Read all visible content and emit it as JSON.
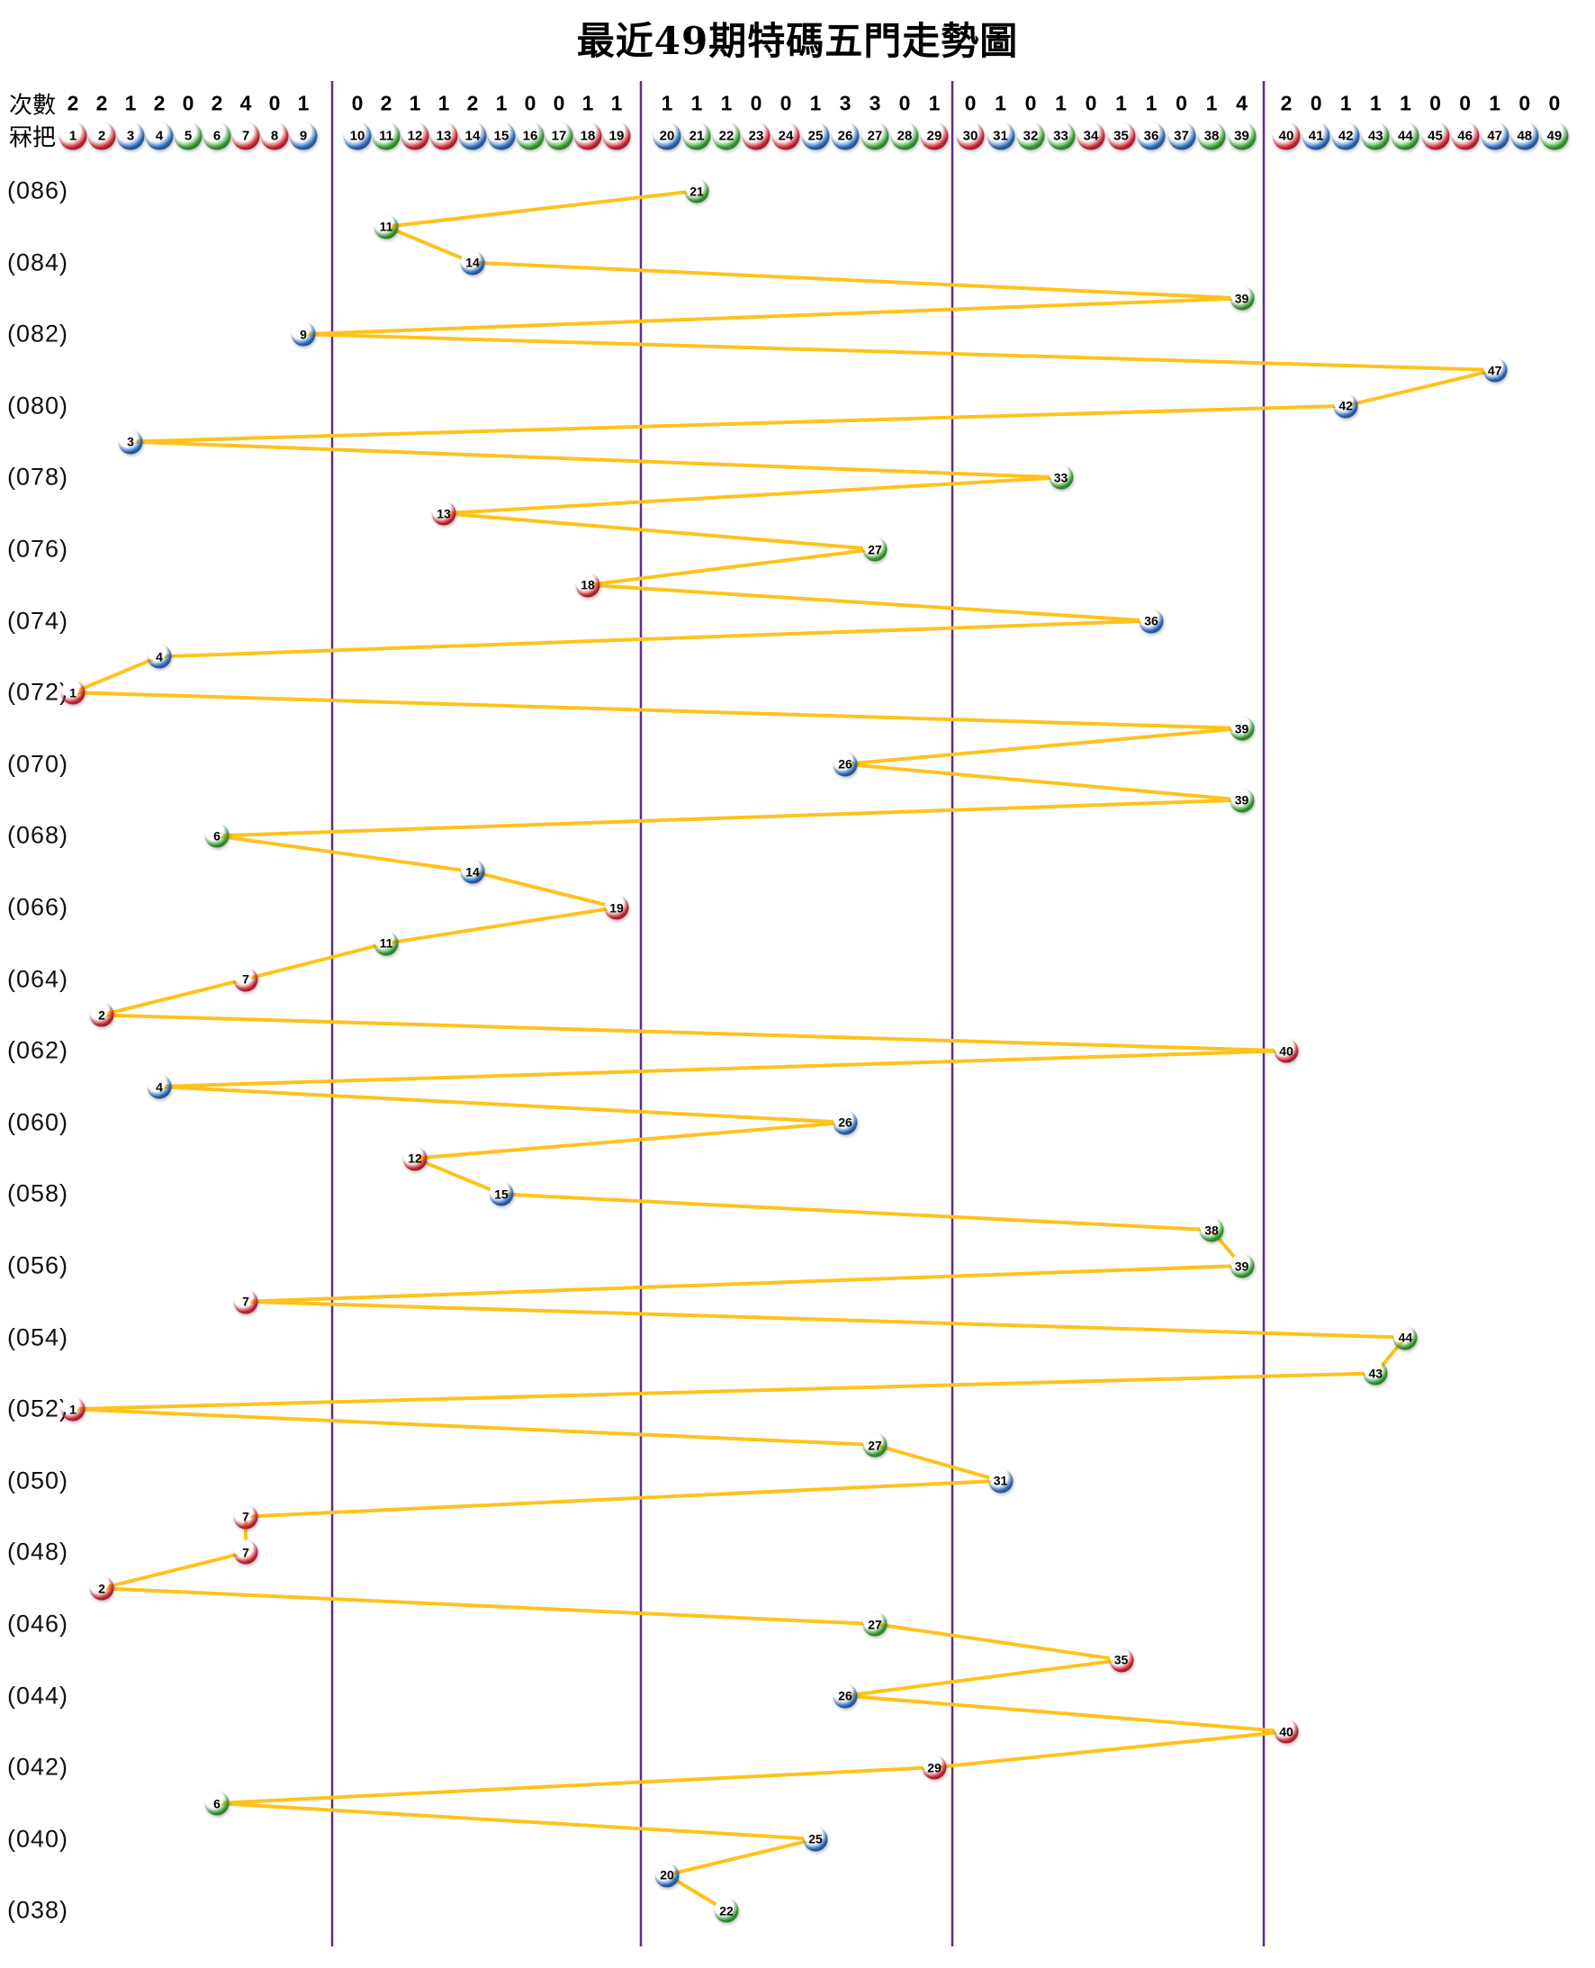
{
  "title": "最近49期特碼五門走勢圖",
  "header": {
    "counts_label": "次數",
    "balls_label": "冧把"
  },
  "colors": {
    "red": "#d5293a",
    "blue": "#2e6fc4",
    "green": "#3aa637",
    "trend_line": "#ffc21c",
    "group_divider": "#5b2c8e",
    "text": "#000000"
  },
  "chart_data": {
    "type": "line",
    "title": "最近49期特碼五門走勢圖",
    "x_axis": "冧把 1-49 (five groups split after 9, 19, 29, 39)",
    "y_axis": "期數 086 (top) → 038 (bottom), one draw per row",
    "x_range": [
      1,
      49
    ],
    "grid": "off",
    "legend": "none",
    "group_dividers_after": [
      9,
      19,
      29,
      39
    ],
    "frequency_counts": [
      2,
      2,
      1,
      2,
      0,
      2,
      4,
      0,
      1,
      0,
      2,
      1,
      1,
      2,
      1,
      0,
      0,
      1,
      1,
      1,
      1,
      1,
      0,
      0,
      1,
      3,
      3,
      0,
      1,
      0,
      1,
      0,
      1,
      0,
      1,
      1,
      0,
      1,
      4,
      2,
      0,
      1,
      1,
      1,
      0,
      0,
      1,
      0,
      0
    ],
    "ball_color_groups": {
      "red": [
        1,
        2,
        7,
        8,
        12,
        13,
        18,
        19,
        23,
        24,
        29,
        30,
        34,
        35,
        40,
        45,
        46
      ],
      "blue": [
        3,
        4,
        9,
        10,
        14,
        15,
        20,
        25,
        26,
        31,
        36,
        37,
        41,
        42,
        47,
        48
      ],
      "green": [
        5,
        6,
        11,
        16,
        17,
        21,
        22,
        27,
        28,
        32,
        33,
        38,
        39,
        43,
        44,
        49
      ]
    },
    "visible_period_labels": [
      "(086)",
      "(084)",
      "(082)",
      "(080)",
      "(078)",
      "(076)",
      "(074)",
      "(072)",
      "(070)",
      "(068)",
      "(066)",
      "(064)",
      "(062)",
      "(060)",
      "(058)",
      "(056)",
      "(054)",
      "(052)",
      "(050)",
      "(048)",
      "(046)",
      "(044)",
      "(042)",
      "(040)",
      "(038)"
    ],
    "series": [
      {
        "name": "特碼",
        "points": [
          {
            "period": "086",
            "ball": 21
          },
          {
            "period": "085",
            "ball": 11
          },
          {
            "period": "084",
            "ball": 14
          },
          {
            "period": "083",
            "ball": 39
          },
          {
            "period": "082",
            "ball": 9
          },
          {
            "period": "081",
            "ball": 47
          },
          {
            "period": "080",
            "ball": 42
          },
          {
            "period": "079",
            "ball": 3
          },
          {
            "period": "078",
            "ball": 33
          },
          {
            "period": "077",
            "ball": 13
          },
          {
            "period": "076",
            "ball": 27
          },
          {
            "period": "075",
            "ball": 18
          },
          {
            "period": "074",
            "ball": 36
          },
          {
            "period": "073",
            "ball": 4
          },
          {
            "period": "072",
            "ball": 1
          },
          {
            "period": "071",
            "ball": 39
          },
          {
            "period": "070",
            "ball": 26
          },
          {
            "period": "069",
            "ball": 39
          },
          {
            "period": "068",
            "ball": 6
          },
          {
            "period": "067",
            "ball": 14
          },
          {
            "period": "066",
            "ball": 19
          },
          {
            "period": "065",
            "ball": 11
          },
          {
            "period": "064",
            "ball": 7
          },
          {
            "period": "063",
            "ball": 2
          },
          {
            "period": "062",
            "ball": 40
          },
          {
            "period": "061",
            "ball": 4
          },
          {
            "period": "060",
            "ball": 26
          },
          {
            "period": "059",
            "ball": 12
          },
          {
            "period": "058",
            "ball": 15
          },
          {
            "period": "057",
            "ball": 38
          },
          {
            "period": "056",
            "ball": 39
          },
          {
            "period": "055",
            "ball": 7
          },
          {
            "period": "054",
            "ball": 44
          },
          {
            "period": "053",
            "ball": 43
          },
          {
            "period": "052",
            "ball": 1
          },
          {
            "period": "051",
            "ball": 27
          },
          {
            "period": "050",
            "ball": 31
          },
          {
            "period": "049",
            "ball": 7
          },
          {
            "period": "048",
            "ball": 7
          },
          {
            "period": "047",
            "ball": 2
          },
          {
            "period": "046",
            "ball": 27
          },
          {
            "period": "045",
            "ball": 35
          },
          {
            "period": "044",
            "ball": 26
          },
          {
            "period": "043",
            "ball": 40
          },
          {
            "period": "042",
            "ball": 29
          },
          {
            "period": "041",
            "ball": 6
          },
          {
            "period": "040",
            "ball": 25
          },
          {
            "period": "039",
            "ball": 20
          },
          {
            "period": "038",
            "ball": 22
          }
        ]
      }
    ]
  }
}
